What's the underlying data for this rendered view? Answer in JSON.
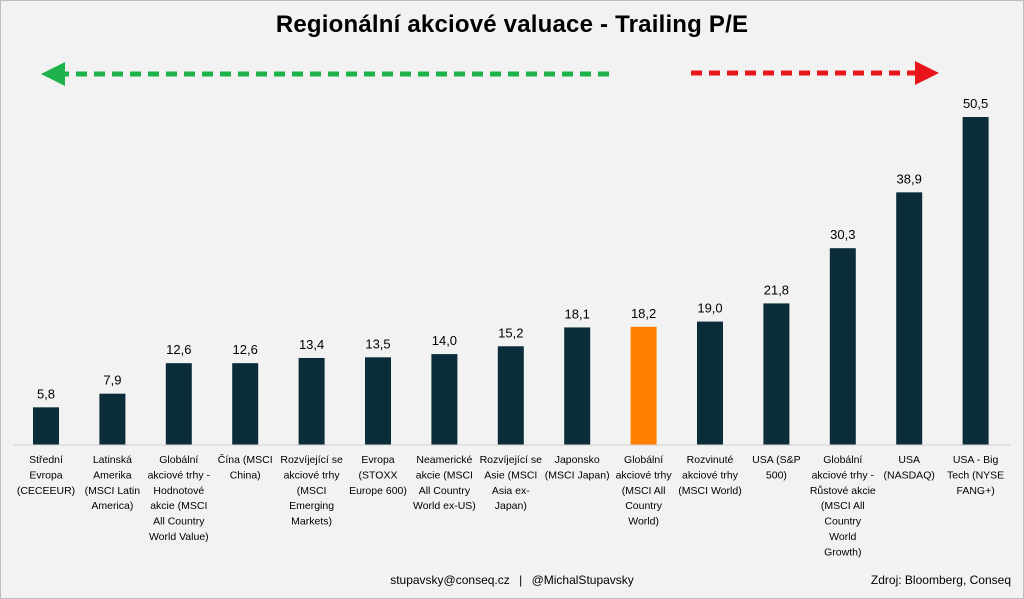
{
  "chart_data": {
    "type": "bar",
    "title": "Regionální akciové valuace - Trailing P/E",
    "categories": [
      "Střední Evropa (CECEEUR)",
      "Latinská Amerika (MSCI Latin America)",
      "Globální akciové trhy - Hodnotové akcie (MSCI All Country World Value)",
      "Čína (MSCI China)",
      "Rozvíjející se akciové trhy (MSCI Emerging Markets)",
      "Evropa (STOXX Europe 600)",
      "Neamerické akcie (MSCI All Country World ex-US)",
      "Rozvíjející se Asie (MSCI Asia ex-Japan)",
      "Japonsko (MSCI Japan)",
      "Globální akciové trhy (MSCI All Country World)",
      "Rozvinuté akciové trhy (MSCI World)",
      "USA (S&P 500)",
      "Globální akciové trhy - Růstové akcie (MSCI All Country World Growth)",
      "USA (NASDAQ)",
      "USA - Big Tech (NYSE FANG+)"
    ],
    "category_lines": [
      [
        "Střední",
        "Evropa",
        "(CECEEUR)"
      ],
      [
        "Latinská",
        "Amerika",
        "(MSCI Latin",
        "America)"
      ],
      [
        "Globální",
        "akciové trhy -",
        "Hodnotové",
        "akcie (MSCI",
        "All Country",
        "World Value)"
      ],
      [
        "Čína (MSCI",
        "China)"
      ],
      [
        "Rozvíjející se",
        "akciové trhy",
        "(MSCI",
        "Emerging",
        "Markets)"
      ],
      [
        "Evropa",
        "(STOXX",
        "Europe 600)"
      ],
      [
        "Neamerické",
        "akcie (MSCI",
        "All Country",
        "World ex-US)"
      ],
      [
        "Rozvíjející se",
        "Asie (MSCI",
        "Asia ex-",
        "Japan)"
      ],
      [
        "Japonsko",
        "(MSCI Japan)"
      ],
      [
        "Globální",
        "akciové trhy",
        "(MSCI All",
        "Country",
        "World)"
      ],
      [
        "Rozvinuté",
        "akciové trhy",
        "(MSCI World)"
      ],
      [
        "USA (S&P",
        "500)"
      ],
      [
        "Globální",
        "akciové trhy -",
        "Růstové akcie",
        "(MSCI All",
        "Country",
        "World",
        "Growth)"
      ],
      [
        "USA",
        "(NASDAQ)"
      ],
      [
        "USA - Big",
        "Tech (NYSE",
        "FANG+)"
      ]
    ],
    "values": [
      5.8,
      7.9,
      12.6,
      12.6,
      13.4,
      13.5,
      14.0,
      15.2,
      18.1,
      18.2,
      19.0,
      21.8,
      30.3,
      38.9,
      50.5
    ],
    "value_labels": [
      "5,8",
      "7,9",
      "12,6",
      "12,6",
      "13,4",
      "13,5",
      "14,0",
      "15,2",
      "18,1",
      "18,2",
      "19,0",
      "21,8",
      "30,3",
      "38,9",
      "50,5"
    ],
    "highlight_index": 9,
    "ylim": [
      0,
      50.5
    ],
    "grid": false,
    "legend": "none",
    "xlabel": "",
    "ylabel": ""
  },
  "colors": {
    "bar": "#0b2d3a",
    "highlight": "#ff8000",
    "left_arrow": "#1fb24a",
    "right_arrow": "#e8151b",
    "background": "#f2f2f2"
  },
  "footer": {
    "email": "stupavsky@conseq.cz",
    "separator": "|",
    "handle": "@MichalStupavsky",
    "source": "Zdroj: Bloomberg, Conseq"
  }
}
